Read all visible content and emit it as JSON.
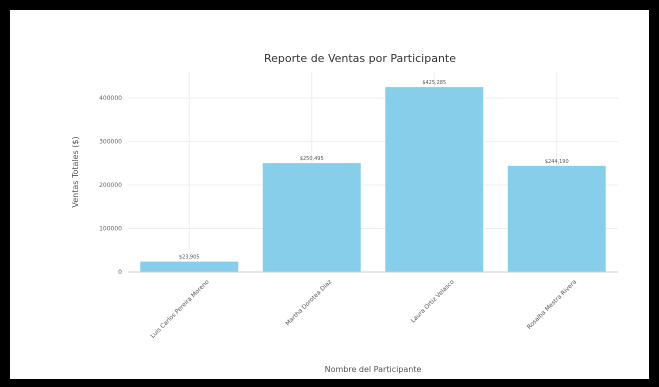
{
  "chart_data": {
    "type": "bar",
    "title": "Reporte de Ventas por Participante",
    "xlabel": "Nombre del Participante",
    "ylabel": "Ventas Totales ($)",
    "categories": [
      "Luis Carlos Pereira Moreno",
      "Martha Dorotea Diaz",
      "Laura Ortiz Velasco",
      "Rosalba Mestra Rivera"
    ],
    "values": [
      23905,
      250495,
      425285,
      244190
    ],
    "data_labels": [
      "$23,905",
      "$250,495",
      "$425,285",
      "$244,190"
    ],
    "yticks": [
      0,
      100000,
      200000,
      300000,
      400000
    ],
    "ytick_labels": [
      "0",
      "100000",
      "200000",
      "300000",
      "400000"
    ],
    "ylim": [
      0,
      460000
    ],
    "bar_color": "#87CEEB",
    "grid": true,
    "legend": "none"
  }
}
